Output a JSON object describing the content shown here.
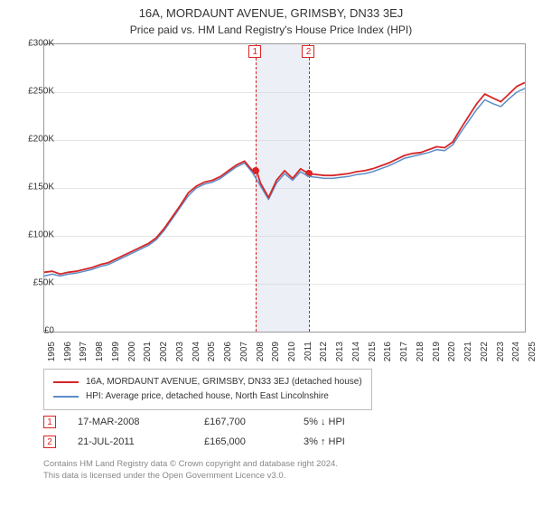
{
  "header": {
    "title": "16A, MORDAUNT AVENUE, GRIMSBY, DN33 3EJ",
    "subtitle": "Price paid vs. HM Land Registry's House Price Index (HPI)"
  },
  "chart": {
    "type": "line",
    "background_color": "#ffffff",
    "grid_color": "#e5e5e5",
    "border_color": "#999999",
    "ylim": [
      0,
      300
    ],
    "yticks": [
      0,
      50,
      100,
      150,
      200,
      250,
      300
    ],
    "ytick_labels": [
      "£0",
      "£50K",
      "£100K",
      "£150K",
      "£200K",
      "£250K",
      "£300K"
    ],
    "xlim": [
      1995,
      2025
    ],
    "xticks": [
      1995,
      1996,
      1997,
      1998,
      1999,
      2000,
      2001,
      2002,
      2003,
      2004,
      2005,
      2006,
      2007,
      2008,
      2009,
      2010,
      2011,
      2012,
      2013,
      2014,
      2015,
      2016,
      2017,
      2018,
      2019,
      2020,
      2021,
      2022,
      2023,
      2024,
      2025
    ],
    "label_fontsize": 10,
    "series": [
      {
        "name": "red",
        "color": "#d62728",
        "width": 1.8,
        "values": [
          [
            1995,
            62
          ],
          [
            1995.5,
            63
          ],
          [
            1996,
            60
          ],
          [
            1996.5,
            62
          ],
          [
            1997,
            63
          ],
          [
            1997.5,
            65
          ],
          [
            1998,
            67
          ],
          [
            1998.5,
            70
          ],
          [
            1999,
            72
          ],
          [
            1999.5,
            76
          ],
          [
            2000,
            80
          ],
          [
            2000.5,
            84
          ],
          [
            2001,
            88
          ],
          [
            2001.5,
            92
          ],
          [
            2002,
            98
          ],
          [
            2002.5,
            108
          ],
          [
            2003,
            120
          ],
          [
            2003.5,
            132
          ],
          [
            2004,
            145
          ],
          [
            2004.5,
            152
          ],
          [
            2005,
            156
          ],
          [
            2005.5,
            158
          ],
          [
            2006,
            162
          ],
          [
            2006.5,
            168
          ],
          [
            2007,
            174
          ],
          [
            2007.5,
            178
          ],
          [
            2008,
            168
          ],
          [
            2008.25,
            167.7
          ],
          [
            2008.5,
            155
          ],
          [
            2009,
            140
          ],
          [
            2009.5,
            158
          ],
          [
            2010,
            168
          ],
          [
            2010.5,
            160
          ],
          [
            2011,
            170
          ],
          [
            2011.5,
            165
          ],
          [
            2012,
            164
          ],
          [
            2012.5,
            163
          ],
          [
            2013,
            163
          ],
          [
            2013.5,
            164
          ],
          [
            2014,
            165
          ],
          [
            2014.5,
            167
          ],
          [
            2015,
            168
          ],
          [
            2015.5,
            170
          ],
          [
            2016,
            173
          ],
          [
            2016.5,
            176
          ],
          [
            2017,
            180
          ],
          [
            2017.5,
            184
          ],
          [
            2018,
            186
          ],
          [
            2018.5,
            187
          ],
          [
            2019,
            190
          ],
          [
            2019.5,
            193
          ],
          [
            2020,
            192
          ],
          [
            2020.5,
            198
          ],
          [
            2021,
            212
          ],
          [
            2021.5,
            225
          ],
          [
            2022,
            238
          ],
          [
            2022.5,
            248
          ],
          [
            2023,
            244
          ],
          [
            2023.5,
            240
          ],
          [
            2024,
            248
          ],
          [
            2024.5,
            256
          ],
          [
            2025,
            260
          ]
        ]
      },
      {
        "name": "blue",
        "color": "#5b8dc9",
        "width": 1.5,
        "values": [
          [
            1995,
            58
          ],
          [
            1995.5,
            60
          ],
          [
            1996,
            58
          ],
          [
            1996.5,
            60
          ],
          [
            1997,
            61
          ],
          [
            1997.5,
            63
          ],
          [
            1998,
            65
          ],
          [
            1998.5,
            68
          ],
          [
            1999,
            70
          ],
          [
            1999.5,
            74
          ],
          [
            2000,
            78
          ],
          [
            2000.5,
            82
          ],
          [
            2001,
            86
          ],
          [
            2001.5,
            90
          ],
          [
            2002,
            96
          ],
          [
            2002.5,
            106
          ],
          [
            2003,
            118
          ],
          [
            2003.5,
            130
          ],
          [
            2004,
            142
          ],
          [
            2004.5,
            150
          ],
          [
            2005,
            154
          ],
          [
            2005.5,
            156
          ],
          [
            2006,
            160
          ],
          [
            2006.5,
            166
          ],
          [
            2007,
            172
          ],
          [
            2007.5,
            176
          ],
          [
            2008,
            166
          ],
          [
            2008.5,
            152
          ],
          [
            2009,
            138
          ],
          [
            2009.5,
            155
          ],
          [
            2010,
            165
          ],
          [
            2010.5,
            158
          ],
          [
            2011,
            167
          ],
          [
            2011.5,
            162
          ],
          [
            2012,
            161
          ],
          [
            2012.5,
            160
          ],
          [
            2013,
            160
          ],
          [
            2013.5,
            161
          ],
          [
            2014,
            162
          ],
          [
            2014.5,
            164
          ],
          [
            2015,
            165
          ],
          [
            2015.5,
            167
          ],
          [
            2016,
            170
          ],
          [
            2016.5,
            173
          ],
          [
            2017,
            177
          ],
          [
            2017.5,
            181
          ],
          [
            2018,
            183
          ],
          [
            2018.5,
            185
          ],
          [
            2019,
            187
          ],
          [
            2019.5,
            190
          ],
          [
            2020,
            189
          ],
          [
            2020.5,
            195
          ],
          [
            2021,
            208
          ],
          [
            2021.5,
            220
          ],
          [
            2022,
            232
          ],
          [
            2022.5,
            242
          ],
          [
            2023,
            238
          ],
          [
            2023.5,
            235
          ],
          [
            2024,
            243
          ],
          [
            2024.5,
            250
          ],
          [
            2025,
            254
          ]
        ]
      }
    ],
    "markers": [
      {
        "id": "1",
        "x": 2008.21,
        "y": 167.7,
        "label": "1"
      },
      {
        "id": "2",
        "x": 2011.55,
        "y": 165.0,
        "label": "2"
      }
    ],
    "marker_band_color": "rgba(200,210,225,0.35)",
    "marker_line_color": "#d22"
  },
  "legend": {
    "items": [
      {
        "color": "#d62728",
        "label": "16A, MORDAUNT AVENUE, GRIMSBY, DN33 3EJ (detached house)"
      },
      {
        "color": "#5b8dc9",
        "label": "HPI: Average price, detached house, North East Lincolnshire"
      }
    ]
  },
  "sales": [
    {
      "marker": "1",
      "date": "17-MAR-2008",
      "price": "£167,700",
      "delta": "5% ↓ HPI"
    },
    {
      "marker": "2",
      "date": "21-JUL-2011",
      "price": "£165,000",
      "delta": "3% ↑ HPI"
    }
  ],
  "footer": {
    "line1": "Contains HM Land Registry data © Crown copyright and database right 2024.",
    "line2": "This data is licensed under the Open Government Licence v3.0."
  }
}
